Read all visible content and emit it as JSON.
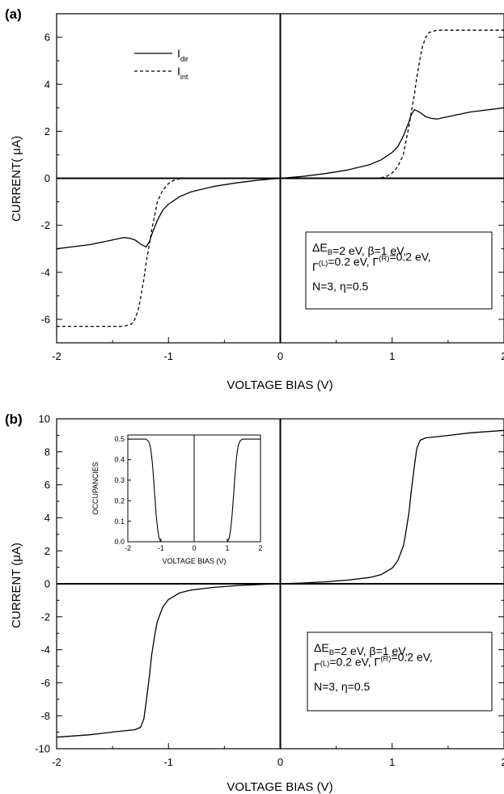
{
  "chart_data": [
    {
      "type": "line",
      "panel_label": "(a)",
      "xlabel": "VOLTAGE BIAS  (V)",
      "ylabel": "CURRENT( μA)",
      "xlim": [
        -2,
        2
      ],
      "ylim": [
        -7,
        7
      ],
      "x_ticks": [
        -2,
        -1,
        0,
        1,
        2
      ],
      "x_tick_labels": [
        "-2",
        "-1",
        "0",
        "1",
        "2"
      ],
      "y_ticks": [
        -6,
        -4,
        -2,
        0,
        2,
        4,
        6
      ],
      "y_tick_labels": [
        "-6",
        "-4",
        "-2",
        "0",
        "2",
        "4",
        "6"
      ],
      "grid": false,
      "legend": {
        "placement": "top-left",
        "entries": [
          {
            "main": "I",
            "sub": "dir",
            "style": "solid"
          },
          {
            "main": "I",
            "sub": "int",
            "style": "dashed"
          }
        ]
      },
      "annotation": {
        "placement": "lower-right",
        "lines": [
          [
            [
              "ΔE",
              ""
            ],
            [
              "B",
              "sub"
            ],
            [
              "=2 eV, β=1 eV,",
              ""
            ]
          ],
          [
            [
              "Γ",
              ""
            ],
            [
              "(L)",
              "sup"
            ],
            [
              "=0.2 eV, Γ",
              ""
            ],
            [
              "(R)",
              "sup"
            ],
            [
              "=0.2 eV,",
              ""
            ]
          ],
          [
            [
              "N=3, η=0.5",
              ""
            ]
          ]
        ]
      },
      "series": [
        {
          "name": "I_dir",
          "style": "solid",
          "x": [
            -2,
            -1.7,
            -1.5,
            -1.4,
            -1.35,
            -1.3,
            -1.25,
            -1.2,
            -1.17,
            -1.15,
            -1.1,
            -1.05,
            -1.0,
            -0.9,
            -0.8,
            -0.6,
            -0.4,
            -0.2,
            0,
            0.2,
            0.4,
            0.6,
            0.8,
            0.9,
            1.0,
            1.05,
            1.1,
            1.15,
            1.17,
            1.2,
            1.25,
            1.3,
            1.35,
            1.4,
            1.5,
            1.7,
            2
          ],
          "y": [
            -3.0,
            -2.82,
            -2.62,
            -2.52,
            -2.55,
            -2.62,
            -2.8,
            -2.92,
            -2.7,
            -2.4,
            -1.8,
            -1.35,
            -1.1,
            -0.78,
            -0.58,
            -0.35,
            -0.2,
            -0.08,
            0,
            0.08,
            0.2,
            0.35,
            0.58,
            0.78,
            1.1,
            1.35,
            1.8,
            2.4,
            2.7,
            2.92,
            2.8,
            2.62,
            2.55,
            2.52,
            2.62,
            2.82,
            3.0
          ]
        },
        {
          "name": "I_int",
          "style": "dashed",
          "x": [
            -2,
            -1.4,
            -1.33,
            -1.3,
            -1.27,
            -1.25,
            -1.22,
            -1.2,
            -1.17,
            -1.15,
            -1.12,
            -1.1,
            -1.05,
            -1.0,
            -0.95,
            -0.9,
            -0.85,
            0.85,
            0.9,
            0.95,
            1.0,
            1.05,
            1.1,
            1.12,
            1.15,
            1.17,
            1.2,
            1.22,
            1.25,
            1.27,
            1.3,
            1.33,
            1.4,
            2
          ],
          "y": [
            -6.3,
            -6.3,
            -6.2,
            -6.0,
            -5.6,
            -5.1,
            -4.3,
            -3.6,
            -2.8,
            -2.2,
            -1.5,
            -1.0,
            -0.5,
            -0.22,
            -0.08,
            -0.02,
            0,
            0,
            0.02,
            0.08,
            0.22,
            0.5,
            1.0,
            1.5,
            2.2,
            2.8,
            3.6,
            4.3,
            5.1,
            5.6,
            6.0,
            6.2,
            6.3,
            6.3
          ]
        }
      ]
    },
    {
      "type": "line",
      "panel_label": "(b)",
      "xlabel": "VOLTAGE BIAS (V)",
      "ylabel": "CURRENT (μA)",
      "xlim": [
        -2,
        2
      ],
      "ylim": [
        -10,
        10
      ],
      "x_ticks": [
        -2,
        -1,
        0,
        1,
        2
      ],
      "x_tick_labels": [
        "-2",
        "-1",
        "0",
        "1",
        "2"
      ],
      "y_ticks": [
        -10,
        -8,
        -6,
        -4,
        -2,
        0,
        2,
        4,
        6,
        8,
        10
      ],
      "y_tick_labels": [
        "-10",
        "-8",
        "-6",
        "-4",
        "-2",
        "0",
        "2",
        "4",
        "6",
        "8",
        "10"
      ],
      "grid": false,
      "annotation": {
        "placement": "lower-right",
        "lines": [
          [
            [
              "ΔE",
              ""
            ],
            [
              "B",
              "sub"
            ],
            [
              "=2 eV, β=1 eV,",
              ""
            ]
          ],
          [
            [
              "Γ",
              ""
            ],
            [
              "(L)",
              "sup"
            ],
            [
              "=0.2 eV, Γ",
              ""
            ],
            [
              "(R)",
              "sup"
            ],
            [
              "=0.2 eV,",
              ""
            ]
          ],
          [
            [
              "N=3, η=0.5",
              ""
            ]
          ]
        ]
      },
      "series": [
        {
          "style": "solid",
          "x": [
            -2,
            -1.7,
            -1.45,
            -1.3,
            -1.25,
            -1.22,
            -1.2,
            -1.17,
            -1.15,
            -1.12,
            -1.1,
            -1.05,
            -1.0,
            -0.9,
            -0.8,
            -0.6,
            -0.4,
            -0.2,
            0,
            0.2,
            0.4,
            0.6,
            0.8,
            0.9,
            1.0,
            1.05,
            1.1,
            1.12,
            1.15,
            1.17,
            1.2,
            1.22,
            1.25,
            1.3,
            1.45,
            1.7,
            2
          ],
          "y": [
            -9.3,
            -9.15,
            -8.95,
            -8.85,
            -8.7,
            -8.2,
            -7.2,
            -5.6,
            -4.3,
            -3.0,
            -2.3,
            -1.4,
            -0.95,
            -0.55,
            -0.38,
            -0.22,
            -0.12,
            -0.05,
            0,
            0.05,
            0.12,
            0.22,
            0.38,
            0.55,
            0.95,
            1.4,
            2.3,
            3.0,
            4.3,
            5.6,
            7.2,
            8.2,
            8.7,
            8.85,
            8.95,
            9.15,
            9.3
          ]
        }
      ],
      "inset": {
        "type": "line",
        "xlabel": "VOLTAGE BIAS  (V)",
        "ylabel": "OCCUPANCIES",
        "xlim": [
          -2,
          2
        ],
        "ylim": [
          0,
          0.52
        ],
        "x_ticks": [
          -2,
          -1,
          0,
          1,
          2
        ],
        "x_tick_labels": [
          "-2",
          "-1",
          "0",
          "1",
          "2"
        ],
        "y_ticks": [
          0,
          0.1,
          0.2,
          0.3,
          0.4,
          0.5
        ],
        "y_tick_labels": [
          "0.0",
          "0.1",
          "0.2",
          "0.3",
          "0.4",
          "0.5"
        ],
        "series": [
          {
            "style": "solid",
            "x": [
              -2,
              -1.45,
              -1.38,
              -1.33,
              -1.3,
              -1.27,
              -1.25,
              -1.22,
              -1.2,
              -1.17,
              -1.15,
              -1.12,
              -1.1,
              -1.07,
              -1.05,
              -1.02,
              -1.0,
              1.0,
              1.02,
              1.05,
              1.07,
              1.1,
              1.12,
              1.15,
              1.17,
              1.2,
              1.22,
              1.25,
              1.27,
              1.3,
              1.33,
              1.38,
              1.45,
              2
            ],
            "y": [
              0.5,
              0.5,
              0.49,
              0.47,
              0.44,
              0.4,
              0.36,
              0.3,
              0.25,
              0.19,
              0.14,
              0.09,
              0.06,
              0.03,
              0.015,
              0.005,
              0,
              0,
              0.005,
              0.015,
              0.03,
              0.06,
              0.09,
              0.14,
              0.19,
              0.25,
              0.3,
              0.36,
              0.4,
              0.44,
              0.47,
              0.49,
              0.5,
              0.5
            ]
          }
        ]
      }
    }
  ]
}
